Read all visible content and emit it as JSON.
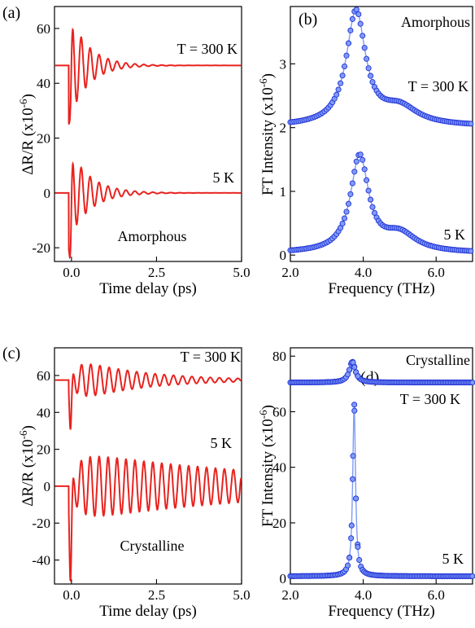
{
  "figure": {
    "panels": [
      "(a)",
      "(b)",
      "(c)",
      "(d)"
    ]
  },
  "colors": {
    "trace": "#e8231f",
    "marker_fill": "#7f9cf5",
    "marker_stroke": "#1f2fd6",
    "fit_line": "#7f9cf5"
  },
  "chart_data": [
    {
      "panel": "(a)",
      "type": "line",
      "xlabel": "Time delay (ps)",
      "ylabel": "ΔR/R (x10^-6)",
      "xlim": [
        -0.5,
        5.0
      ],
      "ylim": [
        -25,
        68
      ],
      "xticks": [
        0.0,
        2.5,
        5.0
      ],
      "xtick_labels": [
        "0.0",
        "2.5",
        "5.0"
      ],
      "yticks": [
        -20,
        0,
        20,
        40,
        60
      ],
      "ytick_labels": [
        "-20",
        "0",
        "20",
        "40",
        "60"
      ],
      "annotations": [
        "T = 300 K",
        "5 K",
        "Amorphous"
      ],
      "series": [
        {
          "name": "T = 300 K",
          "offset": 46.5,
          "dip": -20,
          "amp": 20,
          "freq_thz": 3.8,
          "decay_ps": 0.55
        },
        {
          "name": "5 K",
          "offset": 0,
          "dip": -25,
          "amp": 17,
          "freq_thz": 3.8,
          "decay_ps": 0.6
        }
      ]
    },
    {
      "panel": "(b)",
      "type": "scatter",
      "xlabel": "Frequency (THz)",
      "ylabel": "FT Intensity (x10^-6)",
      "xlim": [
        2.0,
        7.0
      ],
      "ylim": [
        -0.1,
        3.9
      ],
      "xticks": [
        2.0,
        4.0,
        6.0
      ],
      "xtick_labels": [
        "2.0",
        "4.0",
        "6.0"
      ],
      "yticks": [
        0,
        1,
        2,
        3
      ],
      "ytick_labels": [
        "0",
        "1",
        "2",
        "3"
      ],
      "annotations": [
        "Amorphous",
        "T = 300 K",
        "5 K"
      ],
      "series": [
        {
          "name": "T = 300 K",
          "baseline": 2.02,
          "peak1_center": 3.8,
          "peak1_height": 1.78,
          "peak1_width": 0.32,
          "peak2_center": 5.0,
          "peak2_height": 0.27,
          "peak2_width": 0.6
        },
        {
          "name": "5 K",
          "baseline": 0.03,
          "peak1_center": 3.9,
          "peak1_height": 1.5,
          "peak1_width": 0.3,
          "peak2_center": 5.0,
          "peak2_height": 0.28,
          "peak2_width": 0.55
        }
      ]
    },
    {
      "panel": "(c)",
      "type": "line",
      "xlabel": "Time delay (ps)",
      "ylabel": "ΔR/R (x10^-6)",
      "xlim": [
        -0.5,
        5.0
      ],
      "ylim": [
        -53,
        75
      ],
      "xticks": [
        0.0,
        2.5,
        5.0
      ],
      "xtick_labels": [
        "0.0",
        "2.5",
        "5.0"
      ],
      "yticks": [
        -40,
        -20,
        0,
        20,
        40,
        60
      ],
      "ytick_labels": [
        "-40",
        "-20",
        "0",
        "20",
        "40",
        "60"
      ],
      "annotations": [
        "T = 300 K",
        "5 K",
        "Crystalline"
      ],
      "series": [
        {
          "name": "T = 300 K",
          "offset": 57.5,
          "dip": -27,
          "amp": 13,
          "freq_thz": 3.7,
          "decay_ps": 1.9,
          "rise": 6
        },
        {
          "name": "5 K",
          "offset": 0,
          "dip": -52,
          "amp": 19,
          "freq_thz": 3.8,
          "decay_ps": 6.5,
          "rise": 6
        }
      ]
    },
    {
      "panel": "(d)",
      "type": "scatter",
      "xlabel": "Frequency (THz)",
      "ylabel": "FT Intensity (x10^-6)",
      "xlim": [
        2.0,
        7.0
      ],
      "ylim": [
        -2,
        83
      ],
      "xticks": [
        2.0,
        4.0,
        6.0
      ],
      "xtick_labels": [
        "2.0",
        "4.0",
        "6.0"
      ],
      "yticks": [
        0,
        20,
        40,
        60,
        80
      ],
      "ytick_labels": [
        "0",
        "20",
        "40",
        "60",
        "80"
      ],
      "annotations": [
        "Crystalline",
        "T = 300 K",
        "5 K"
      ],
      "series": [
        {
          "name": "T = 300 K",
          "baseline": 70.5,
          "peak1_center": 3.7,
          "peak1_height": 7.5,
          "peak1_width": 0.1
        },
        {
          "name": "5 K",
          "baseline": 0.8,
          "peak1_center": 3.75,
          "peak1_height": 62.5,
          "peak1_width": 0.045
        }
      ]
    }
  ]
}
